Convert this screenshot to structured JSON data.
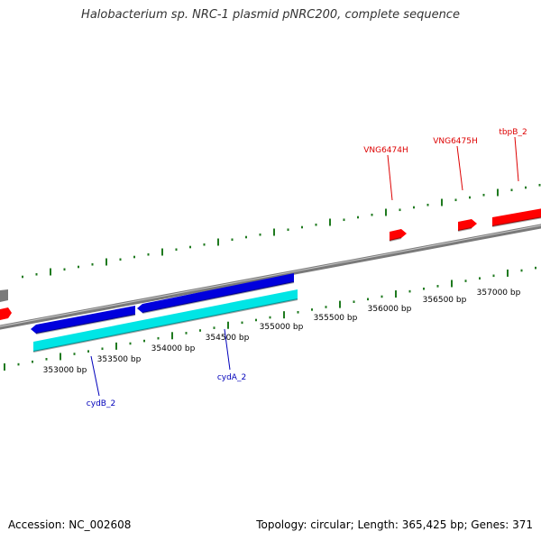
{
  "title": "Halobacterium sp. NRC-1 plasmid pNRC200, complete sequence",
  "footer": {
    "accession_label": "Accession:",
    "accession": "NC_002608",
    "topology_label": "Topology:",
    "topology": "circular",
    "length_label": "Length:",
    "length": "365,425 bp",
    "genes_label": "Genes:",
    "genes": "371"
  },
  "colors": {
    "backbone": "#7a7a7a",
    "tick": "#1f7a1f",
    "forward_gene": "#ff0000",
    "reverse_gene": "#0000dd",
    "cds": "#00e5e5",
    "forward_label": "#dd0000",
    "reverse_label": "#0000bb"
  },
  "scale_labels": [
    "353000 bp",
    "353500 bp",
    "354000 bp",
    "354500 bp",
    "355000 bp",
    "355500 bp",
    "356000 bp",
    "356500 bp",
    "357000 bp"
  ],
  "genes": [
    {
      "name": "VNG6474H",
      "strand": "forward"
    },
    {
      "name": "VNG6475H",
      "strand": "forward"
    },
    {
      "name": "tbpB_2",
      "strand": "forward"
    },
    {
      "name": "cydB_2",
      "strand": "reverse"
    },
    {
      "name": "cydA_2",
      "strand": "reverse"
    }
  ]
}
